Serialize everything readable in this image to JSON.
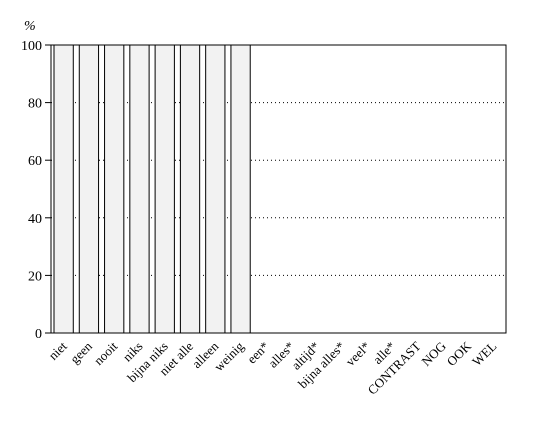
{
  "chart_data": {
    "type": "bar",
    "ylabel": "%",
    "ylim": [
      0,
      100
    ],
    "yticks": [
      0,
      20,
      40,
      60,
      80,
      100
    ],
    "grid": "horizontal dotted",
    "bar_fill": "#f2f2f2",
    "bar_stroke": "#000000",
    "categories": [
      "niet",
      "geen",
      "nooit",
      "niks",
      "bijna niks",
      "niet alle",
      "alleen",
      "weinig",
      "een*",
      "alles*",
      "altijd*",
      "bijna alles*",
      "veel*",
      "alle*",
      "CONTRAST",
      "NOG",
      "OOK",
      "WEL"
    ],
    "values": [
      100,
      100,
      100,
      100,
      100,
      100,
      100,
      100,
      0,
      0,
      0,
      0,
      0,
      0,
      0,
      0,
      0,
      0
    ]
  }
}
